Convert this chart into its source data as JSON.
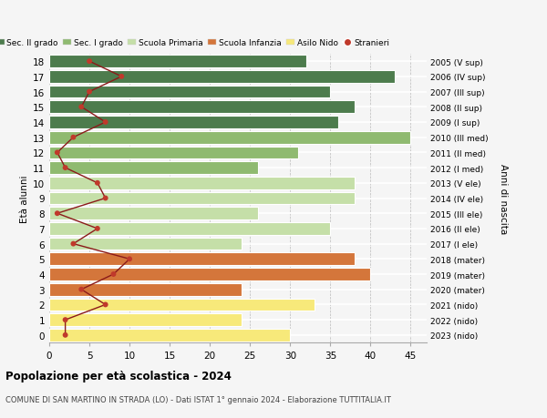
{
  "ages": [
    0,
    1,
    2,
    3,
    4,
    5,
    6,
    7,
    8,
    9,
    10,
    11,
    12,
    13,
    14,
    15,
    16,
    17,
    18
  ],
  "bar_values": [
    30,
    24,
    33,
    24,
    40,
    38,
    24,
    35,
    26,
    38,
    38,
    26,
    31,
    45,
    36,
    38,
    35,
    43,
    32
  ],
  "stranieri": [
    2,
    2,
    7,
    4,
    8,
    10,
    3,
    6,
    1,
    7,
    6,
    2,
    1,
    3,
    7,
    4,
    5,
    9,
    5
  ],
  "right_labels": [
    "2023 (nido)",
    "2022 (nido)",
    "2021 (nido)",
    "2020 (mater)",
    "2019 (mater)",
    "2018 (mater)",
    "2017 (I ele)",
    "2016 (II ele)",
    "2015 (III ele)",
    "2014 (IV ele)",
    "2013 (V ele)",
    "2012 (I med)",
    "2011 (II med)",
    "2010 (III med)",
    "2009 (I sup)",
    "2008 (II sup)",
    "2007 (III sup)",
    "2006 (IV sup)",
    "2005 (V sup)"
  ],
  "bar_colors": [
    "#f7e97a",
    "#f7e97a",
    "#f7e97a",
    "#d4763b",
    "#d4763b",
    "#d4763b",
    "#c5dfa8",
    "#c5dfa8",
    "#c5dfa8",
    "#c5dfa8",
    "#c5dfa8",
    "#8fba70",
    "#8fba70",
    "#8fba70",
    "#4d7c4d",
    "#4d7c4d",
    "#4d7c4d",
    "#4d7c4d",
    "#4d7c4d"
  ],
  "legend_labels": [
    "Sec. II grado",
    "Sec. I grado",
    "Scuola Primaria",
    "Scuola Infanzia",
    "Asilo Nido",
    "Stranieri"
  ],
  "legend_colors": [
    "#4d7c4d",
    "#8fba70",
    "#c5dfa8",
    "#d4763b",
    "#f7e97a",
    "#c0392b"
  ],
  "ylabel": "Età alunni",
  "right_ylabel": "Anni di nascita",
  "title": "Popolazione per età scolastica - 2024",
  "subtitle": "COMUNE DI SAN MARTINO IN STRADA (LO) - Dati ISTAT 1° gennaio 2024 - Elaborazione TUTTITALIA.IT",
  "xlim": [
    0,
    47
  ],
  "xticks": [
    0,
    5,
    10,
    15,
    20,
    25,
    30,
    35,
    40,
    45
  ],
  "bg_color": "#f5f5f5",
  "stranieri_line_color": "#8b1a1a",
  "stranieri_dot_color": "#c0392b"
}
